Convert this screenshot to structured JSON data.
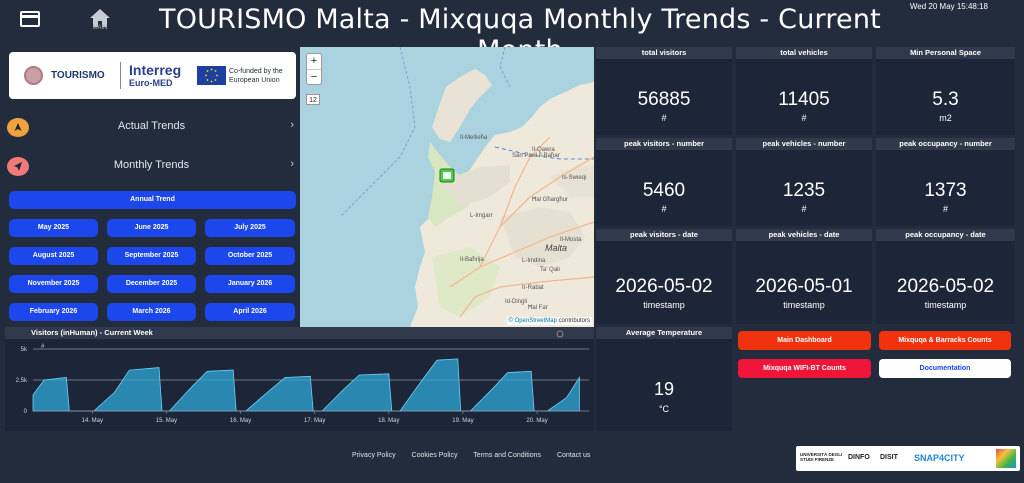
{
  "header": {
    "title": "TOURISMO Malta - Mixquqa Monthly Trends - Current Month",
    "home_label": "MAIN",
    "datetime": "Wed 20 May 15:48:18"
  },
  "logos": {
    "tourismo": "TOURISMO",
    "interreg": "Interreg",
    "interreg_sub": "Euro-MED",
    "eu_text": "Co-funded by the European Union"
  },
  "nav": {
    "actual": "Actual Trends",
    "monthly": "Monthly Trends"
  },
  "buttons": {
    "annual": "Annual Trend",
    "months": [
      "May 2025",
      "June 2025",
      "July 2025",
      "August 2025",
      "September 2025",
      "October 2025",
      "November 2025",
      "December 2025",
      "January 2026",
      "February 2026",
      "March 2026",
      "April 2026"
    ]
  },
  "map": {
    "zoom_in": "+",
    "zoom_out": "−",
    "zoom_level": "12",
    "attribution_osm": "© OpenStreetMap",
    "attribution_rest": "contributors",
    "labels": [
      "Il-Mellieħa",
      "San Pawl il-Baħar",
      "Il-Qawra",
      "L-Imġarr",
      "Malta",
      "L-Imdina",
      "Ir-Rabat",
      "Il-Baħrija",
      "Il-Mosta",
      "Ħal Għargħur",
      "Is-Swieqi",
      "Ta' Qali",
      "Id-Dingli",
      "Ħal Far"
    ]
  },
  "tiles": {
    "total_visitors": {
      "label": "total visitors",
      "value": "56885",
      "unit": "#"
    },
    "total_vehicles": {
      "label": "total vehicles",
      "value": "11405",
      "unit": "#"
    },
    "min_space": {
      "label": "Min Personal Space",
      "value": "5.3",
      "unit": "m2"
    },
    "peak_visitors_num": {
      "label": "peak visitors - number",
      "value": "5460",
      "unit": "#"
    },
    "peak_vehicles_num": {
      "label": "peak vehicles - number",
      "value": "1235",
      "unit": "#"
    },
    "peak_occupancy_num": {
      "label": "peak occupancy - number",
      "value": "1373",
      "unit": "#"
    },
    "peak_visitors_date": {
      "label": "peak visitors - date",
      "value": "2026-05-02",
      "unit": "timestamp"
    },
    "peak_vehicles_date": {
      "label": "peak vehicles - date",
      "value": "2026-05-01",
      "unit": "timestamp"
    },
    "peak_occupancy_date": {
      "label": "peak occupancy - date",
      "value": "2026-05-02",
      "unit": "timestamp"
    },
    "avg_temp": {
      "label": "Average Temperature",
      "value": "19",
      "unit": "°C"
    }
  },
  "links": {
    "main_dashboard": "Main Dashboard",
    "mixquqa_barracks": "Mixquqa & Barracks Counts",
    "wifi_bt": "Mixquqa WIFI-BT Counts",
    "documentation": "Documentation"
  },
  "chart_data": {
    "type": "area",
    "title": "Visitors (inHuman) - Current Week",
    "y_axis_unit": "#",
    "yticks": [
      "5k",
      "2.5k",
      "0"
    ],
    "xticks": [
      "14. May",
      "15. May",
      "16. May",
      "17. May",
      "18. May",
      "19. May",
      "20. May"
    ],
    "ylim": [
      0,
      5000
    ],
    "reference_line": 2500,
    "series": [
      {
        "points": [
          [
            0.0,
            1300
          ],
          [
            0.15,
            2500
          ],
          [
            0.45,
            2700
          ],
          [
            0.49,
            0
          ],
          [
            0.82,
            0
          ],
          [
            1.1,
            1500
          ],
          [
            1.3,
            3300
          ],
          [
            1.7,
            3500
          ],
          [
            1.74,
            0
          ],
          [
            1.84,
            0
          ],
          [
            2.15,
            2000
          ],
          [
            2.35,
            3200
          ],
          [
            2.7,
            3300
          ],
          [
            2.74,
            0
          ],
          [
            2.87,
            0
          ],
          [
            3.2,
            1700
          ],
          [
            3.4,
            2700
          ],
          [
            3.74,
            2800
          ],
          [
            3.78,
            0
          ],
          [
            3.9,
            0
          ],
          [
            4.2,
            1800
          ],
          [
            4.4,
            2900
          ],
          [
            4.8,
            3000
          ],
          [
            4.84,
            0
          ],
          [
            4.95,
            0
          ],
          [
            5.25,
            2500
          ],
          [
            5.45,
            4100
          ],
          [
            5.73,
            4200
          ],
          [
            5.77,
            0
          ],
          [
            5.9,
            0
          ],
          [
            6.2,
            1800
          ],
          [
            6.4,
            3100
          ],
          [
            6.72,
            3200
          ],
          [
            6.76,
            0
          ],
          [
            6.94,
            0
          ],
          [
            7.2,
            1100
          ],
          [
            7.37,
            2700
          ]
        ]
      }
    ]
  },
  "footer": {
    "privacy": "Privacy Policy",
    "cookies": "Cookies Policy",
    "terms": "Terms and Conditions",
    "contact": "Contact us",
    "partners": [
      "UNIVERSITÀ DEGLI STUDI FIRENZE",
      "DINFO",
      "DISIT",
      "SNAP4CITY"
    ]
  },
  "colors": {
    "background": "#222c3c",
    "tile": "#1d2638",
    "blue_button": "#1b47ec",
    "red_button": "#f0320f",
    "pink_button": "#ee1539",
    "area_fill": "#2fa8d8"
  }
}
